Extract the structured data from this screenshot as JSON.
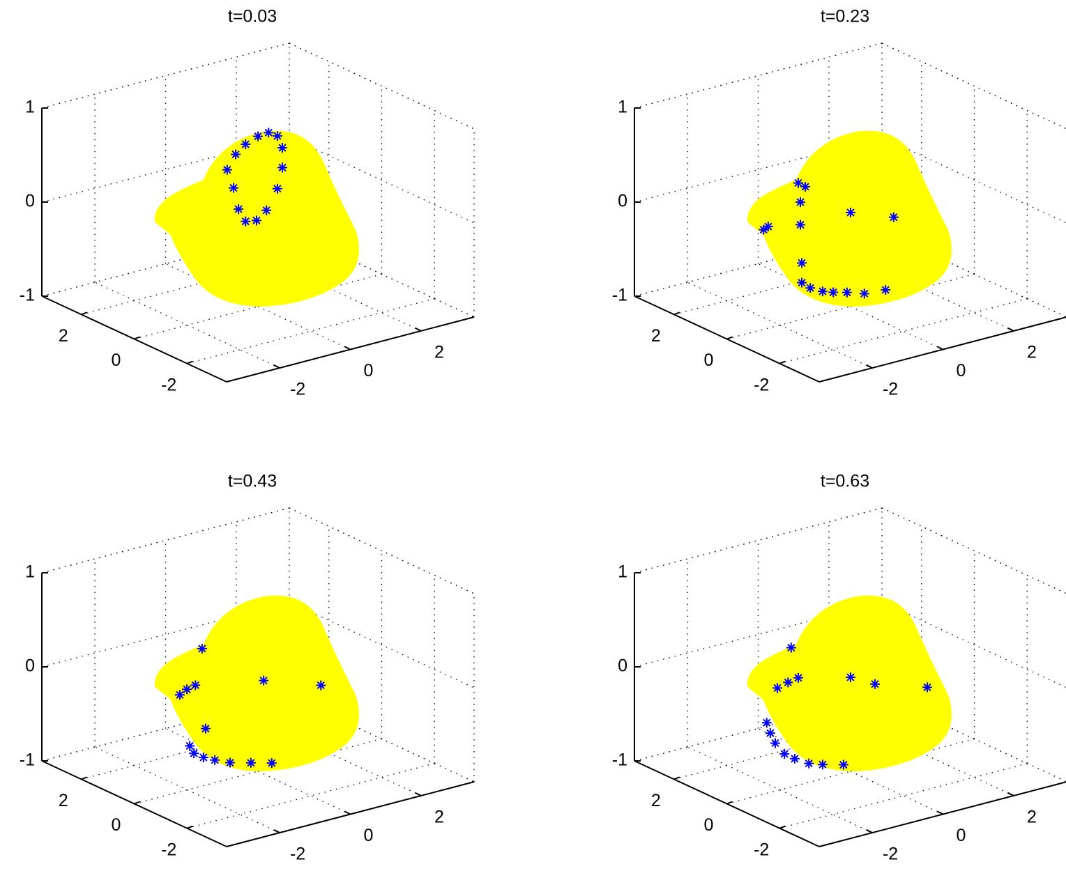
{
  "chart_data": [
    {
      "type": "scatter3d",
      "title": "t=0.03",
      "xlim": [
        -3.5,
        3.5
      ],
      "ylim": [
        -3.5,
        3.5
      ],
      "zlim": [
        -1,
        1
      ],
      "xticks": [
        -2,
        0,
        2
      ],
      "yticks": [
        -2,
        0,
        2
      ],
      "zticks": [
        -1,
        0,
        1
      ],
      "grid": true,
      "surface_color": "#ffff00",
      "series": [
        {
          "color": "#0000ff",
          "x": [
            0.3,
            0,
            -0.35,
            -0.63,
            -0.87,
            -0.69,
            -0.55,
            -0.35,
            -0.04,
            0.24,
            0.55,
            0.69,
            0.69,
            0.55
          ],
          "y": [
            0,
            0,
            0,
            0,
            0,
            0,
            0,
            0,
            0,
            0,
            0,
            0,
            0,
            0
          ],
          "z": [
            0.82,
            0.81,
            0.76,
            0.68,
            0.54,
            0.33,
            0.09,
            -0.06,
            -0.08,
            0.0,
            0.2,
            0.41,
            0.62,
            0.76
          ]
        }
      ]
    },
    {
      "type": "scatter3d",
      "title": "t=0.23",
      "xlim": [
        -3.5,
        3.5
      ],
      "ylim": [
        -3.5,
        3.5
      ],
      "zlim": [
        -1,
        1
      ],
      "xticks": [
        -2,
        0,
        2
      ],
      "yticks": [
        -2,
        0,
        2
      ],
      "zticks": [
        -1,
        0,
        1
      ],
      "grid": true,
      "surface_color": "#ffff00",
      "series": [
        {
          "color": "#0000ff",
          "x": [
            -1.48,
            -1.28,
            -1.42,
            -1.42,
            -2.46,
            -2.33,
            0,
            1.22,
            -1.38,
            -1.38,
            -1.14,
            -0.79,
            -0.49,
            -0.1,
            0.39,
            0.99
          ],
          "y": [
            0,
            0,
            0,
            0,
            0,
            0,
            0,
            0,
            0,
            0,
            0,
            0,
            0,
            0,
            0,
            0
          ],
          "z": [
            0.46,
            0.4,
            0.25,
            0.01,
            0.06,
            0.08,
            0,
            -0.17,
            -0.4,
            -0.61,
            -0.69,
            -0.76,
            -0.8,
            -0.84,
            -0.9,
            -0.92
          ]
        }
      ]
    },
    {
      "type": "scatter3d",
      "title": "t=0.43",
      "xlim": [
        -3.5,
        3.5
      ],
      "ylim": [
        -3.5,
        3.5
      ],
      "zlim": [
        -1,
        1
      ],
      "xticks": [
        -2,
        0,
        2
      ],
      "yticks": [
        -2,
        0,
        2
      ],
      "zticks": [
        -1,
        0,
        1
      ],
      "grid": true,
      "surface_color": "#ffff00",
      "series": [
        {
          "color": "#0000ff",
          "x": [
            -1.58,
            -2.21,
            -2.01,
            -1.77,
            0.16,
            1.78,
            -1.48,
            -1.93,
            -1.81,
            -1.54,
            -1.22,
            -0.79,
            -0.2,
            0.39
          ],
          "y": [
            0,
            0,
            0,
            0,
            0,
            0,
            0,
            0,
            0,
            0,
            0,
            0,
            0,
            0
          ],
          "z": [
            0.46,
            0.03,
            0.07,
            0.09,
            -0.05,
            -0.26,
            -0.4,
            -0.54,
            -0.63,
            -0.7,
            -0.76,
            -0.83,
            -0.89,
            -0.95
          ]
        }
      ]
    },
    {
      "type": "scatter3d",
      "title": "t=0.63",
      "xlim": [
        -3.5,
        3.5
      ],
      "ylim": [
        -3.5,
        3.5
      ],
      "zlim": [
        -1,
        1
      ],
      "xticks": [
        -2,
        0,
        2
      ],
      "yticks": [
        -2,
        0,
        2
      ],
      "zticks": [
        -1,
        0,
        1
      ],
      "grid": true,
      "surface_color": "#ffff00",
      "series": [
        {
          "color": "#0000ff",
          "x": [
            -1.68,
            -2.07,
            -1.77,
            -1.48,
            0,
            0.69,
            2.17,
            -2.37,
            -2.27,
            -2.13,
            -1.87,
            -1.58,
            -1.18,
            -0.79,
            -0.2
          ],
          "y": [
            0,
            0,
            0,
            0,
            0,
            0,
            0,
            0,
            0,
            0,
            0,
            0,
            0,
            0,
            0
          ],
          "z": [
            0.48,
            0.09,
            0.12,
            0.14,
            0,
            -0.14,
            -0.32,
            -0.25,
            -0.37,
            -0.49,
            -0.63,
            -0.71,
            -0.8,
            -0.85,
            -0.91
          ]
        }
      ]
    }
  ]
}
